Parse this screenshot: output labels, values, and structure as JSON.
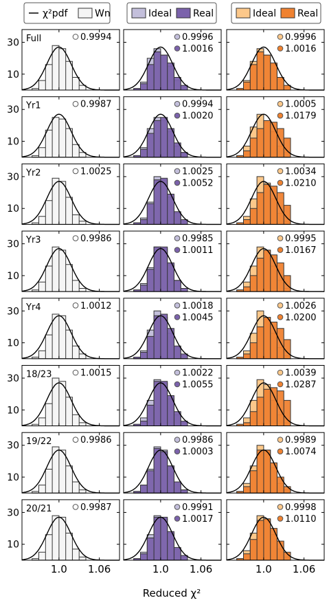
{
  "figure": {
    "xlabel": "Reduced χ²",
    "x_ticks": [
      "1.0",
      "1.06"
    ],
    "y_ticks": [
      "10",
      "30"
    ]
  },
  "legends": [
    {
      "items": [
        {
          "label": "χ²pdf",
          "kind": "line"
        },
        {
          "label": "Wn",
          "kind": "box",
          "color": "#f5f5f5"
        }
      ]
    },
    {
      "items": [
        {
          "label": "Ideal",
          "color": "#c3bfdb"
        },
        {
          "label": "Real",
          "color": "#7b62ab"
        }
      ]
    },
    {
      "items": [
        {
          "label": "Ideal",
          "color": "#fcc88a"
        },
        {
          "label": "Real",
          "color": "#ef8231"
        }
      ]
    }
  ],
  "colors": {
    "wn_fill": "#f5f5f5",
    "purple_ideal": "#c3bfdb",
    "purple_real": "#7b62ab",
    "orange_ideal": "#fcc88a",
    "orange_real": "#ef8231",
    "edge": "#333333"
  },
  "row_labels": [
    "Full",
    "Yr1",
    "Yr2",
    "Yr3",
    "Yr4",
    "18/23",
    "19/22",
    "20/21"
  ],
  "values": {
    "white": [
      "0.9994",
      "0.9987",
      "1.0025",
      "0.9986",
      "1.0012",
      "1.0015",
      "0.9986",
      "0.9987"
    ],
    "purple_ideal": [
      "0.9996",
      "0.9994",
      "1.0025",
      "0.9985",
      "1.0018",
      "1.0022",
      "0.9986",
      "0.9991"
    ],
    "purple_real": [
      "1.0016",
      "1.0020",
      "1.0052",
      "1.0011",
      "1.0045",
      "1.0055",
      "1.0003",
      "1.0017"
    ],
    "orange_ideal": [
      "0.9996",
      "1.0005",
      "1.0034",
      "0.9995",
      "1.0026",
      "1.0039",
      "0.9989",
      "0.9998"
    ],
    "orange_real": [
      "1.0016",
      "1.0179",
      "1.0210",
      "1.0167",
      "1.0200",
      "1.0287",
      "1.0074",
      "1.0110"
    ]
  },
  "chart_data": {
    "type": "histogram-grid",
    "columns": [
      "Wn",
      "Ideal/Real (purple)",
      "Ideal/Real (orange)"
    ],
    "rows": [
      "Full",
      "Yr1",
      "Yr2",
      "Yr3",
      "Yr4",
      "18/23",
      "19/22",
      "20/21"
    ],
    "xlim": [
      0.945,
      1.09
    ],
    "ylim": [
      0,
      38
    ],
    "bin_width": 0.01,
    "pdf_curve": {
      "mean": 1.0,
      "sigma": 0.018,
      "peak": 27
    },
    "hist": {
      "white": [
        [
          1,
          6,
          16,
          28,
          26,
          18,
          8,
          3
        ],
        [
          1,
          6,
          17,
          25,
          24,
          18,
          8,
          3
        ],
        [
          1,
          5,
          15,
          29,
          27,
          17,
          6,
          2
        ],
        [
          1,
          6,
          16,
          28,
          26,
          17,
          7,
          2
        ],
        [
          1,
          5,
          15,
          28,
          27,
          18,
          8,
          3
        ],
        [
          1,
          5,
          14,
          30,
          28,
          18,
          7,
          2
        ],
        [
          1,
          5,
          15,
          29,
          27,
          17,
          7,
          2
        ],
        [
          1,
          5,
          16,
          28,
          27,
          17,
          7,
          2
        ]
      ],
      "purple_ideal": [
        [
          1,
          5,
          20,
          26,
          22,
          15,
          6,
          2
        ],
        [
          1,
          6,
          18,
          25,
          23,
          16,
          7,
          3
        ],
        [
          1,
          4,
          14,
          30,
          28,
          17,
          7,
          2
        ],
        [
          1,
          5,
          15,
          28,
          27,
          17,
          7,
          2
        ],
        [
          1,
          5,
          18,
          30,
          26,
          16,
          7,
          2
        ],
        [
          1,
          5,
          16,
          29,
          27,
          17,
          7,
          2
        ],
        [
          1,
          5,
          15,
          29,
          27,
          17,
          7,
          2
        ],
        [
          1,
          5,
          16,
          28,
          26,
          17,
          7,
          2
        ]
      ],
      "purple_real": [
        [
          1,
          4,
          16,
          24,
          22,
          17,
          8,
          3
        ],
        [
          1,
          5,
          15,
          23,
          25,
          18,
          9,
          3
        ],
        [
          1,
          3,
          13,
          28,
          29,
          19,
          8,
          3
        ],
        [
          1,
          4,
          14,
          28,
          28,
          18,
          7,
          2
        ],
        [
          1,
          4,
          14,
          27,
          28,
          19,
          8,
          3
        ],
        [
          1,
          3,
          13,
          28,
          28,
          19,
          9,
          3
        ],
        [
          1,
          5,
          14,
          28,
          26,
          17,
          7,
          2
        ],
        [
          1,
          4,
          14,
          27,
          27,
          18,
          8,
          3
        ]
      ],
      "orange_ideal": [
        [
          1,
          6,
          18,
          26,
          22,
          16,
          7,
          2
        ],
        [
          1,
          7,
          19,
          27,
          22,
          16,
          7,
          3
        ],
        [
          1,
          5,
          16,
          30,
          26,
          16,
          7,
          2
        ],
        [
          1,
          6,
          16,
          28,
          26,
          16,
          7,
          2
        ],
        [
          1,
          5,
          16,
          30,
          26,
          16,
          7,
          2
        ],
        [
          1,
          5,
          16,
          29,
          26,
          16,
          7,
          2
        ],
        [
          1,
          6,
          17,
          30,
          27,
          16,
          6,
          2
        ],
        [
          1,
          6,
          17,
          28,
          26,
          16,
          7,
          2
        ]
      ],
      "orange_real": [
        [
          1,
          5,
          16,
          24,
          22,
          17,
          8,
          3
        ],
        [
          1,
          4,
          12,
          18,
          23,
          22,
          18,
          12
        ],
        [
          1,
          3,
          10,
          20,
          25,
          24,
          20,
          12
        ],
        [
          1,
          3,
          10,
          21,
          26,
          23,
          18,
          10
        ],
        [
          1,
          3,
          10,
          20,
          26,
          23,
          19,
          12
        ],
        [
          1,
          2,
          9,
          18,
          23,
          24,
          22,
          16
        ],
        [
          1,
          4,
          14,
          27,
          27,
          19,
          10,
          4
        ],
        [
          1,
          4,
          13,
          25,
          26,
          20,
          12,
          5
        ]
      ]
    }
  }
}
